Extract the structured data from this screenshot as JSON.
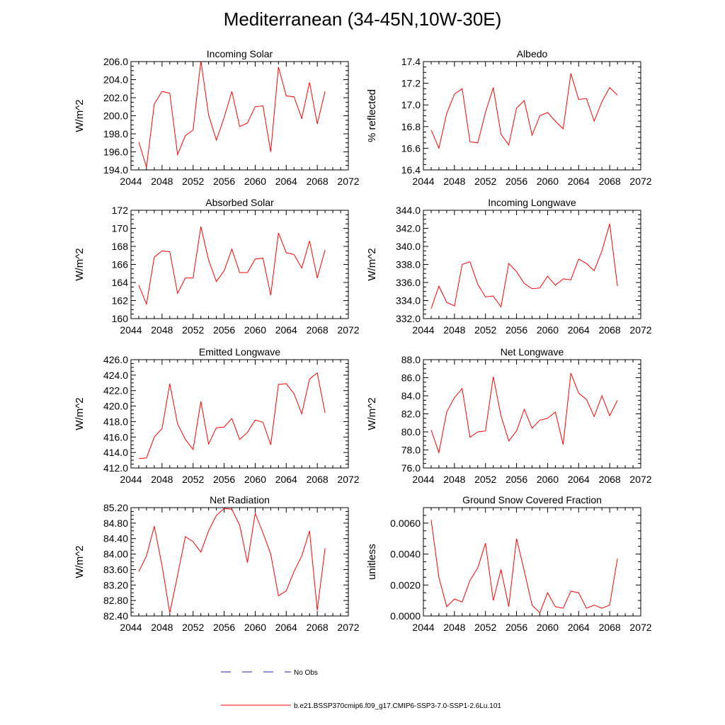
{
  "figure": {
    "title": "Mediterranean (34-45N,10W-30E)"
  },
  "legend": {
    "no_obs_label": "No Obs",
    "model_label": "b.e21.BSSP370cmip6.f09_g17.CMIP6-SSP3-7.0-SSP1-2.6Lu.101",
    "model_color": "#ff0000",
    "obs_color": "#2222aa"
  },
  "chart_data": [
    {
      "type": "line",
      "title": "Incoming Solar",
      "ylabel": "W/m^2",
      "xlim": [
        2044,
        2072
      ],
      "ylim": [
        194,
        206
      ],
      "x_ticks": [
        "2044",
        "2048",
        "2052",
        "2056",
        "2060",
        "2064",
        "2068",
        "2072"
      ],
      "y_ticks": [
        "194.0",
        "196.0",
        "198.0",
        "200.0",
        "202.0",
        "204.0",
        "206.0"
      ],
      "series": [
        {
          "x": [
            2045,
            2046,
            2047,
            2048,
            2049,
            2050,
            2051,
            2052,
            2053,
            2054,
            2055,
            2056,
            2057,
            2058,
            2059,
            2060,
            2061,
            2062,
            2063,
            2064,
            2065,
            2066,
            2067,
            2068,
            2069
          ],
          "values": [
            197.1,
            194.3,
            201.3,
            202.7,
            202.5,
            195.7,
            197.8,
            198.4,
            206.1,
            200.1,
            197.3,
            199.8,
            202.7,
            198.8,
            199.2,
            201.0,
            201.1,
            196.0,
            205.4,
            202.2,
            202.1,
            199.7,
            203.7,
            199.1,
            202.7
          ]
        }
      ]
    },
    {
      "type": "line",
      "title": "Albedo",
      "ylabel": "% reflected",
      "xlim": [
        2044,
        2072
      ],
      "ylim": [
        16.4,
        17.4
      ],
      "x_ticks": [
        "2044",
        "2048",
        "2052",
        "2056",
        "2060",
        "2064",
        "2068",
        "2072"
      ],
      "y_ticks": [
        "16.4",
        "16.6",
        "16.8",
        "17.0",
        "17.2",
        "17.4"
      ],
      "series": [
        {
          "x": [
            2045,
            2046,
            2047,
            2048,
            2049,
            2050,
            2051,
            2052,
            2053,
            2054,
            2055,
            2056,
            2057,
            2058,
            2059,
            2060,
            2061,
            2062,
            2063,
            2064,
            2065,
            2066,
            2067,
            2068,
            2069
          ],
          "values": [
            16.77,
            16.6,
            16.92,
            17.1,
            17.15,
            16.66,
            16.65,
            16.93,
            17.16,
            16.73,
            16.63,
            16.97,
            17.04,
            16.72,
            16.9,
            16.93,
            16.85,
            16.78,
            17.29,
            17.05,
            17.06,
            16.85,
            17.03,
            17.16,
            17.09
          ]
        }
      ]
    },
    {
      "type": "line",
      "title": "Absorbed Solar",
      "ylabel": "W/m^2",
      "xlim": [
        2044,
        2072
      ],
      "ylim": [
        160,
        172
      ],
      "x_ticks": [
        "2044",
        "2048",
        "2052",
        "2056",
        "2060",
        "2064",
        "2068",
        "2072"
      ],
      "y_ticks": [
        "160",
        "162",
        "164",
        "166",
        "168",
        "170",
        "172"
      ],
      "series": [
        {
          "x": [
            2045,
            2046,
            2047,
            2048,
            2049,
            2050,
            2051,
            2052,
            2053,
            2054,
            2055,
            2056,
            2057,
            2058,
            2059,
            2060,
            2061,
            2062,
            2063,
            2064,
            2065,
            2066,
            2067,
            2068,
            2069
          ],
          "values": [
            163.7,
            161.6,
            166.8,
            167.5,
            167.4,
            162.8,
            164.5,
            164.5,
            170.2,
            166.5,
            164.1,
            165.3,
            167.7,
            165.1,
            165.1,
            166.6,
            166.7,
            162.6,
            169.5,
            167.3,
            167.1,
            165.6,
            168.6,
            164.5,
            167.6
          ]
        }
      ]
    },
    {
      "type": "line",
      "title": "Incoming Longwave",
      "ylabel": "W/m^2",
      "xlim": [
        2044,
        2072
      ],
      "ylim": [
        332,
        344
      ],
      "x_ticks": [
        "2044",
        "2048",
        "2052",
        "2056",
        "2060",
        "2064",
        "2068",
        "2072"
      ],
      "y_ticks": [
        "332.0",
        "334.0",
        "336.0",
        "338.0",
        "340.0",
        "342.0",
        "344.0"
      ],
      "series": [
        {
          "x": [
            2045,
            2046,
            2047,
            2048,
            2049,
            2050,
            2051,
            2052,
            2053,
            2054,
            2055,
            2056,
            2057,
            2058,
            2059,
            2060,
            2061,
            2062,
            2063,
            2064,
            2065,
            2066,
            2067,
            2068,
            2069
          ],
          "values": [
            333.1,
            335.6,
            333.8,
            333.4,
            338.0,
            338.3,
            335.8,
            334.4,
            334.5,
            333.3,
            338.1,
            337.2,
            335.9,
            335.3,
            335.4,
            336.7,
            335.7,
            336.4,
            336.3,
            338.6,
            338.1,
            337.3,
            339.5,
            342.5,
            335.6
          ]
        }
      ]
    },
    {
      "type": "line",
      "title": "Emitted Longwave",
      "ylabel": "W/m^2",
      "xlim": [
        2044,
        2072
      ],
      "ylim": [
        412,
        426
      ],
      "x_ticks": [
        "2044",
        "2048",
        "2052",
        "2056",
        "2060",
        "2064",
        "2068",
        "2072"
      ],
      "y_ticks": [
        "412.0",
        "414.0",
        "416.0",
        "418.0",
        "420.0",
        "422.0",
        "424.0",
        "426.0"
      ],
      "series": [
        {
          "x": [
            2045,
            2046,
            2047,
            2048,
            2049,
            2050,
            2051,
            2052,
            2053,
            2054,
            2055,
            2056,
            2057,
            2058,
            2059,
            2060,
            2061,
            2062,
            2063,
            2064,
            2065,
            2066,
            2067,
            2068,
            2069
          ],
          "values": [
            413.2,
            413.3,
            416.0,
            417.1,
            422.9,
            417.7,
            415.7,
            414.4,
            420.6,
            415.1,
            417.2,
            417.3,
            418.4,
            415.7,
            416.6,
            418.2,
            417.9,
            415.0,
            422.8,
            422.9,
            421.6,
            419.0,
            423.5,
            424.3,
            419.1
          ]
        }
      ]
    },
    {
      "type": "line",
      "title": "Net Longwave",
      "ylabel": "W/m^2",
      "xlim": [
        2044,
        2072
      ],
      "ylim": [
        76,
        88
      ],
      "x_ticks": [
        "2044",
        "2048",
        "2052",
        "2056",
        "2060",
        "2064",
        "2068",
        "2072"
      ],
      "y_ticks": [
        "76.0",
        "78.0",
        "80.0",
        "82.0",
        "84.0",
        "86.0",
        "88.0"
      ],
      "series": [
        {
          "x": [
            2045,
            2046,
            2047,
            2048,
            2049,
            2050,
            2051,
            2052,
            2053,
            2054,
            2055,
            2056,
            2057,
            2058,
            2059,
            2060,
            2061,
            2062,
            2063,
            2064,
            2065,
            2066,
            2067,
            2068,
            2069
          ],
          "values": [
            80.2,
            77.7,
            82.2,
            83.8,
            84.8,
            79.4,
            80.0,
            80.1,
            86.1,
            81.8,
            79.0,
            80.1,
            82.5,
            80.4,
            81.3,
            81.5,
            82.2,
            78.6,
            86.5,
            84.3,
            83.6,
            81.7,
            84.0,
            81.8,
            83.5
          ]
        }
      ]
    },
    {
      "type": "line",
      "title": "Net Radiation",
      "ylabel": "W/m^2",
      "xlim": [
        2044,
        2072
      ],
      "ylim": [
        82.4,
        85.2
      ],
      "x_ticks": [
        "2044",
        "2048",
        "2052",
        "2056",
        "2060",
        "2064",
        "2068",
        "2072"
      ],
      "y_ticks": [
        "82.40",
        "82.80",
        "83.20",
        "83.60",
        "84.00",
        "84.40",
        "84.80",
        "85.20"
      ],
      "series": [
        {
          "x": [
            2045,
            2046,
            2047,
            2048,
            2049,
            2050,
            2051,
            2052,
            2053,
            2054,
            2055,
            2056,
            2057,
            2058,
            2059,
            2060,
            2061,
            2062,
            2063,
            2064,
            2065,
            2066,
            2067,
            2068,
            2069
          ],
          "values": [
            83.55,
            83.95,
            84.72,
            83.7,
            82.48,
            83.45,
            84.45,
            84.32,
            84.05,
            84.6,
            85.0,
            85.18,
            85.16,
            84.75,
            83.78,
            85.05,
            84.55,
            84.0,
            82.92,
            83.05,
            83.55,
            83.95,
            84.6,
            82.55,
            84.15
          ]
        }
      ]
    },
    {
      "type": "line",
      "title": "Ground Snow Covered Fraction",
      "ylabel": "unitless",
      "xlim": [
        2044,
        2072
      ],
      "ylim": [
        0.0,
        0.007
      ],
      "x_ticks": [
        "2044",
        "2048",
        "2052",
        "2056",
        "2060",
        "2064",
        "2068",
        "2072"
      ],
      "y_ticks": [
        "0.0000",
        "0.0020",
        "0.0040",
        "0.0060"
      ],
      "y_tick_values": [
        0.0,
        0.002,
        0.004,
        0.006
      ],
      "series": [
        {
          "x": [
            2045,
            2046,
            2047,
            2048,
            2049,
            2050,
            2051,
            2052,
            2053,
            2054,
            2055,
            2056,
            2057,
            2058,
            2059,
            2060,
            2061,
            2062,
            2063,
            2064,
            2065,
            2066,
            2067,
            2068,
            2069
          ],
          "values": [
            0.0062,
            0.0025,
            0.0006,
            0.0011,
            0.0009,
            0.0023,
            0.0031,
            0.0047,
            0.001,
            0.003,
            0.0006,
            0.005,
            0.0029,
            0.0007,
            0.0002,
            0.0015,
            0.0006,
            0.0005,
            0.0016,
            0.0015,
            0.0005,
            0.0007,
            0.0005,
            0.0007,
            0.0037
          ]
        }
      ]
    }
  ]
}
